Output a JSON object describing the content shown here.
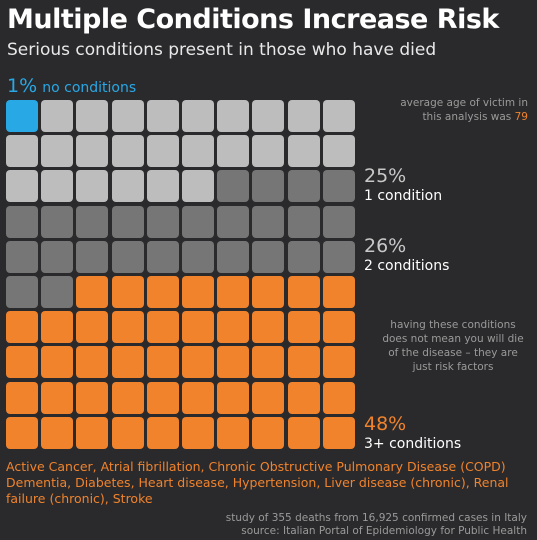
{
  "title": "Multiple Conditions Increase Risk",
  "subtitle": "Serious conditions present in those who have died",
  "labels": {
    "no_conditions_pct": "1%",
    "no_conditions_text": "no conditions",
    "one_pct": "25%",
    "one_text": "1 condition",
    "two_pct": "26%",
    "two_text": "2 conditions",
    "three_pct": "48%",
    "three_text": "3+ conditions"
  },
  "notes": {
    "age_text": "average age of victim in this analysis was",
    "age_value": "79",
    "risk_note": "having these conditions does not mean you will die of the disease – they are just risk factors"
  },
  "conditions_list": "Active Cancer, Atrial fibrillation, Chronic Obstructive Pulmonary Disease (COPD) Dementia, Diabetes, Heart disease, Hypertension, Liver disease (chronic), Renal failure (chronic), Stroke",
  "footer": {
    "line1": "study of 355 deaths from 16,925 confirmed cases in Italy",
    "line2": "source: Italian Portal of Epidemiology for Public Health"
  },
  "colors": {
    "none": "#29a8e6",
    "one": "#bdbdbd",
    "two": "#767676",
    "three": "#f0832c"
  },
  "chart_data": {
    "type": "waffle",
    "grid": {
      "rows": 10,
      "cols": 10
    },
    "categories": [
      "no conditions",
      "1 condition",
      "2 conditions",
      "3+ conditions"
    ],
    "values": [
      1,
      25,
      26,
      48
    ],
    "unit": "%"
  }
}
